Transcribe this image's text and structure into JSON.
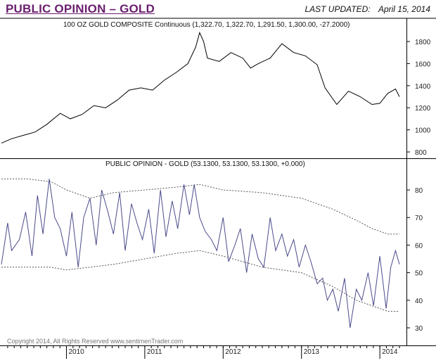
{
  "header": {
    "title": "PUBLIC OPINION – GOLD",
    "updated_label": "LAST UPDATED:",
    "updated_date": "April 15, 2014"
  },
  "footer": {
    "copyright": "Copyright 2014, All Rights Reserved  www.sentimenTrader.com"
  },
  "colors": {
    "title": "#6a1e6e",
    "price_line": "#000000",
    "opinion_line": "#4a4a8c",
    "bands": "#555555"
  },
  "chart_data": [
    {
      "type": "line",
      "title": "100 OZ GOLD COMPOSITE Continuous (1,322.70, 1,322.70, 1,291.50, 1,300.00, -27.2000)",
      "ylim": [
        760,
        1960
      ],
      "yticks": [
        800,
        1000,
        1200,
        1400,
        1600,
        1800
      ],
      "grid": false,
      "series": [
        {
          "x": [
            2009.17,
            2009.3,
            2009.45,
            2009.6,
            2009.75,
            2009.92,
            2010.05,
            2010.2,
            2010.35,
            2010.5,
            2010.65,
            2010.8,
            2010.95,
            2011.1,
            2011.25,
            2011.4,
            2011.55,
            2011.65,
            2011.7,
            2011.75,
            2011.8,
            2011.95,
            2012.1,
            2012.25,
            2012.35,
            2012.45,
            2012.6,
            2012.75,
            2012.9,
            2013.05,
            2013.2,
            2013.3,
            2013.45,
            2013.6,
            2013.75,
            2013.9,
            2014.0,
            2014.1,
            2014.2,
            2014.25
          ],
          "values": [
            880,
            920,
            950,
            980,
            1050,
            1150,
            1100,
            1140,
            1220,
            1200,
            1270,
            1360,
            1380,
            1360,
            1450,
            1520,
            1600,
            1750,
            1880,
            1800,
            1650,
            1620,
            1700,
            1650,
            1560,
            1600,
            1650,
            1780,
            1700,
            1670,
            1590,
            1380,
            1230,
            1350,
            1300,
            1230,
            1240,
            1330,
            1370,
            1300
          ]
        }
      ]
    },
    {
      "type": "line",
      "title": "PUBLIC OPINION - GOLD (53.1300, 53.1300, 53.1300, +0.000)",
      "ylim": [
        25,
        91
      ],
      "yticks": [
        30,
        40,
        50,
        60,
        70,
        80
      ],
      "xticks": [
        "2010",
        "2011",
        "2012",
        "2013",
        "2014"
      ],
      "grid": false,
      "series": [
        {
          "x": [
            2009.17,
            2009.25,
            2009.3,
            2009.4,
            2009.48,
            2009.56,
            2009.63,
            2009.7,
            2009.78,
            2009.85,
            2009.92,
            2010.0,
            2010.07,
            2010.15,
            2010.22,
            2010.3,
            2010.38,
            2010.45,
            2010.53,
            2010.6,
            2010.68,
            2010.75,
            2010.83,
            2010.9,
            2010.97,
            2011.05,
            2011.12,
            2011.2,
            2011.27,
            2011.35,
            2011.42,
            2011.5,
            2011.57,
            2011.63,
            2011.7,
            2011.77,
            2011.85,
            2011.92,
            2012.0,
            2012.07,
            2012.15,
            2012.22,
            2012.3,
            2012.37,
            2012.45,
            2012.52,
            2012.6,
            2012.67,
            2012.75,
            2012.82,
            2012.9,
            2012.97,
            2013.05,
            2013.12,
            2013.2,
            2013.27,
            2013.33,
            2013.4,
            2013.47,
            2013.55,
            2013.62,
            2013.7,
            2013.77,
            2013.85,
            2013.92,
            2014.0,
            2014.08,
            2014.14,
            2014.2,
            2014.25
          ],
          "values": [
            53,
            68,
            58,
            62,
            72,
            56,
            78,
            64,
            84,
            70,
            66,
            56,
            72,
            52,
            70,
            77,
            60,
            80,
            72,
            64,
            79,
            58,
            75,
            68,
            62,
            73,
            57,
            80,
            63,
            76,
            66,
            82,
            71,
            82,
            70,
            65,
            62,
            58,
            70,
            54,
            60,
            66,
            50,
            64,
            55,
            52,
            70,
            58,
            64,
            56,
            62,
            52,
            60,
            54,
            46,
            48,
            40,
            44,
            36,
            48,
            30,
            44,
            40,
            50,
            38,
            56,
            37,
            52,
            58,
            53
          ]
        },
        {
          "name": "upper band",
          "x": [
            2009.17,
            2009.5,
            2009.8,
            2010.0,
            2010.3,
            2010.6,
            2011.0,
            2011.4,
            2011.7,
            2012.0,
            2012.5,
            2013.0,
            2013.4,
            2013.7,
            2013.9,
            2014.1,
            2014.25
          ],
          "values": [
            84,
            84,
            83,
            80,
            77,
            79,
            80,
            81,
            82,
            80,
            79,
            77,
            73,
            69,
            66,
            64,
            64
          ]
        },
        {
          "name": "lower band",
          "x": [
            2009.17,
            2009.5,
            2009.8,
            2010.0,
            2010.3,
            2010.6,
            2011.0,
            2011.4,
            2011.7,
            2012.0,
            2012.5,
            2013.0,
            2013.4,
            2013.7,
            2013.9,
            2014.1,
            2014.25
          ],
          "values": [
            52,
            52,
            52,
            51,
            52,
            53,
            55,
            57,
            58,
            56,
            52,
            50,
            45,
            40,
            38,
            36,
            36
          ]
        }
      ]
    }
  ]
}
